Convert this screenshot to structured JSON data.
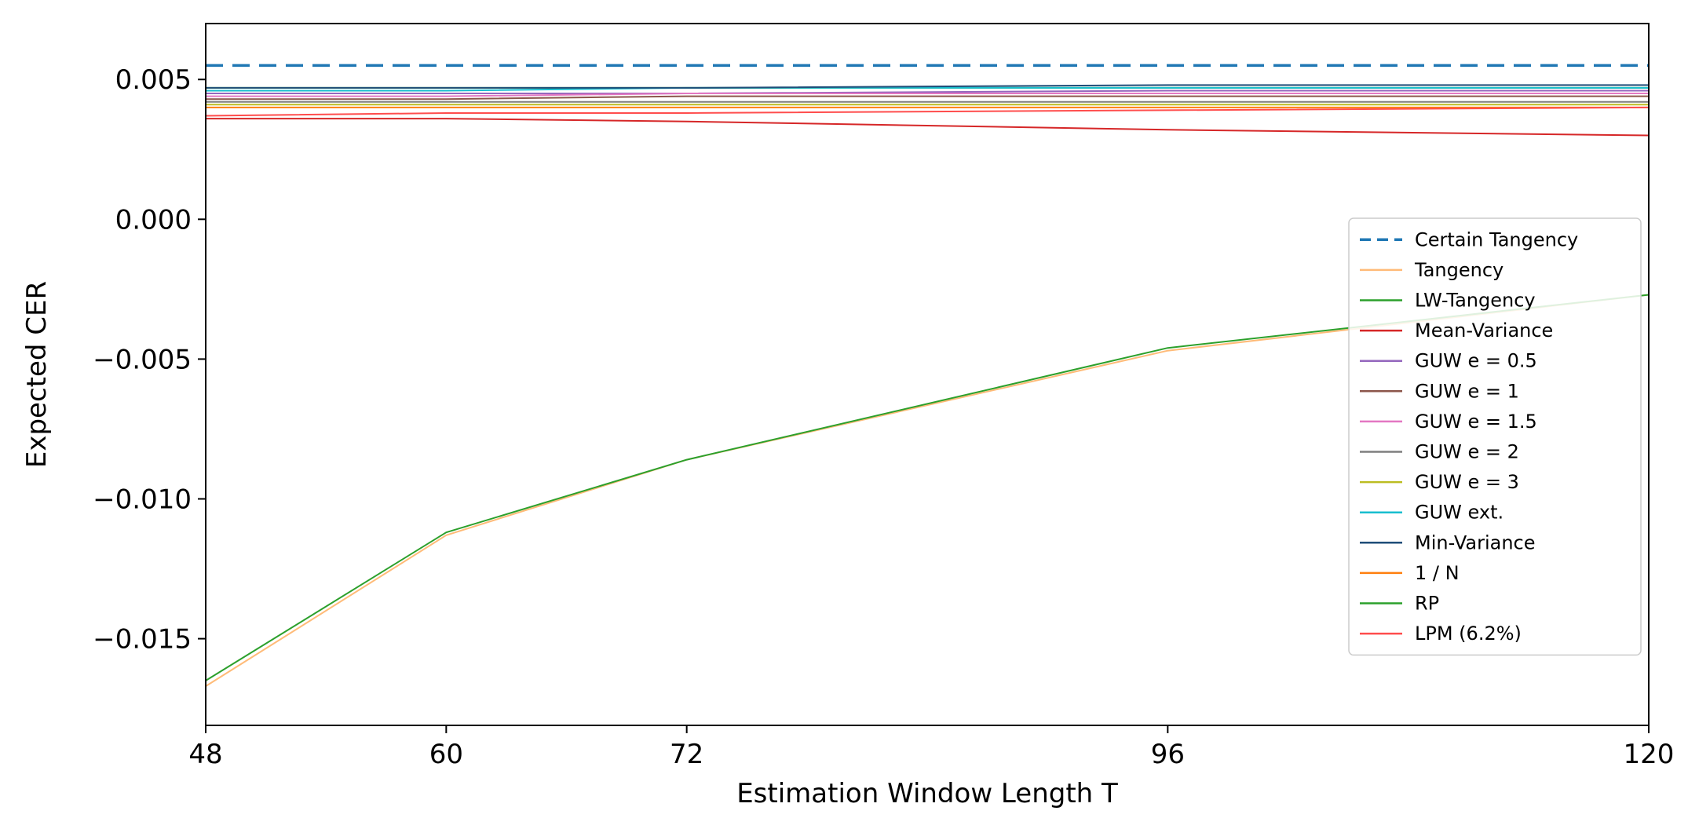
{
  "chart_data": {
    "type": "line",
    "xlabel": "Estimation Window Length T",
    "ylabel": "Expected CER",
    "x": [
      48,
      60,
      72,
      96,
      120
    ],
    "xticks": [
      "48",
      "60",
      "72",
      "96",
      "120"
    ],
    "xlim": [
      48,
      120
    ],
    "yticks": [
      {
        "value": 0.005,
        "label": "0.005"
      },
      {
        "value": 0.0,
        "label": "0.000"
      },
      {
        "value": -0.005,
        "label": "−0.005"
      },
      {
        "value": -0.01,
        "label": "−0.010"
      },
      {
        "value": -0.015,
        "label": "−0.015"
      }
    ],
    "ylim": [
      -0.0181,
      0.007
    ],
    "grid": false,
    "legend_position": "lower-right",
    "series": [
      {
        "name": "Certain Tangency",
        "color": "#1f77b4",
        "dashed": true,
        "values": [
          0.0055,
          0.0055,
          0.0055,
          0.0055,
          0.0055
        ]
      },
      {
        "name": "Tangency",
        "color": "#ffbb78",
        "values": [
          -0.0167,
          -0.0113,
          -0.0086,
          -0.0047,
          -0.0027
        ]
      },
      {
        "name": "LW-Tangency",
        "color": "#2ca02c",
        "values": [
          0.0047,
          0.0047,
          0.0047,
          0.0047,
          0.0047
        ]
      },
      {
        "name": "Mean-Variance",
        "color": "#d62728",
        "values": [
          0.0036,
          0.0036,
          0.0035,
          0.0032,
          0.003
        ]
      },
      {
        "name": "GUW e = 0.5",
        "color": "#9467bd",
        "values": [
          0.0045,
          0.0045,
          0.0045,
          0.0046,
          0.0046
        ]
      },
      {
        "name": "GUW e = 1",
        "color": "#8c564b",
        "values": [
          0.0043,
          0.0043,
          0.0044,
          0.0044,
          0.0044
        ]
      },
      {
        "name": "GUW e = 1.5",
        "color": "#e377c2",
        "values": [
          0.0044,
          0.0044,
          0.0045,
          0.0045,
          0.0045
        ]
      },
      {
        "name": "GUW e = 2",
        "color": "#7f7f7f",
        "values": [
          0.0042,
          0.0042,
          0.0042,
          0.0042,
          0.0042
        ]
      },
      {
        "name": "GUW e = 3",
        "color": "#bcbd22",
        "values": [
          0.0041,
          0.0041,
          0.0041,
          0.0041,
          0.0041
        ]
      },
      {
        "name": "GUW ext.",
        "color": "#17becf",
        "values": [
          0.0046,
          0.0046,
          0.0047,
          0.0047,
          0.0047
        ]
      },
      {
        "name": "Min-Variance",
        "color": "#1f4e79",
        "values": [
          0.0047,
          0.0047,
          0.0047,
          0.0048,
          0.0048
        ]
      },
      {
        "name": "1 / N",
        "color": "#ff7f0e",
        "values": [
          0.004,
          0.004,
          0.004,
          0.004,
          0.004
        ]
      },
      {
        "name": "RP",
        "color": "#2ca02c",
        "values": [
          -0.0165,
          -0.0112,
          -0.0086,
          -0.0046,
          -0.0027
        ]
      },
      {
        "name": "LPM (6.2%)",
        "color": "#ff4d4d",
        "values": [
          0.0037,
          0.0038,
          0.0038,
          0.0039,
          0.004
        ]
      }
    ]
  }
}
